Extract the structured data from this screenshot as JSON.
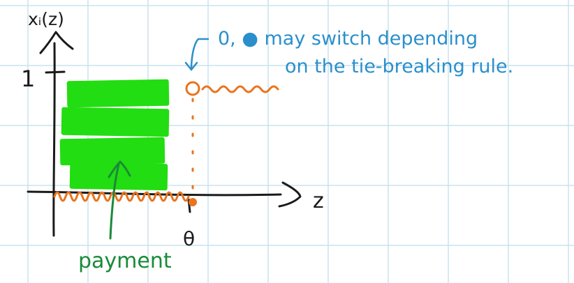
{
  "labels": {
    "y_axis_label": "xᵢ(z)",
    "y_tick_one": "1",
    "x_axis_label": "z",
    "theta_label": "θ",
    "payment_label": "payment",
    "annotation_line1": "0, ● may switch depending",
    "annotation_line2": "on the tie-breaking rule."
  },
  "colors": {
    "grid": "#c9e3ee",
    "ink": "#1a1a1a",
    "payment_area": "#22dd11",
    "payment_text": "#1a8a3a",
    "allocation": "#e8741e",
    "annotation": "#2a8fcc"
  },
  "icons": {
    "open_circle": "open-circle-icon",
    "filled_dot": "filled-dot-icon"
  }
}
